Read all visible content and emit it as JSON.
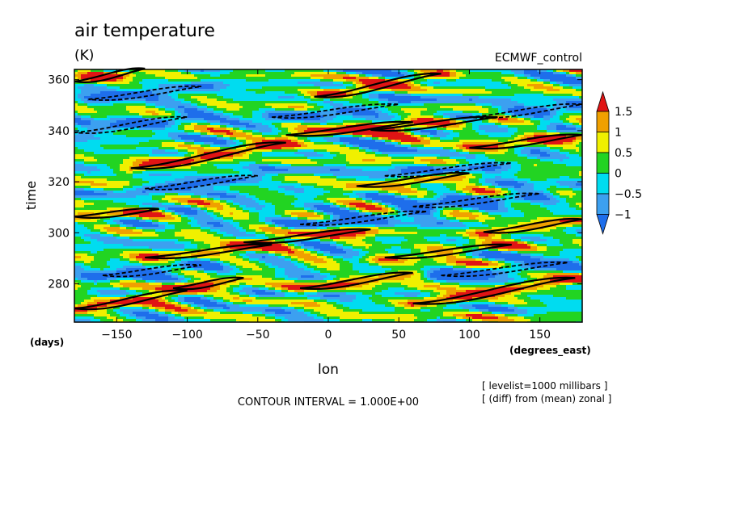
{
  "chart_data": {
    "type": "heatmap",
    "title": "air temperature",
    "units": "(K)",
    "dataset": "ECMWF_control",
    "xlabel": "lon",
    "ylabel": "time",
    "x_units_label": "(degrees_east)",
    "y_units_label": "(days)",
    "xlim": [
      -180,
      180
    ],
    "ylim": [
      265,
      364
    ],
    "xticks": [
      -150,
      -100,
      -50,
      0,
      50,
      100,
      150
    ],
    "xtick_labels": [
      "−150",
      "−100",
      "−50",
      "0",
      "50",
      "100",
      "150"
    ],
    "yticks": [
      280,
      300,
      320,
      340,
      360
    ],
    "ytick_labels": [
      "280",
      "300",
      "320",
      "340",
      "360"
    ],
    "colorbar": {
      "levels": [
        -1,
        -0.5,
        0,
        0.5,
        1,
        1.5
      ],
      "labels": [
        "−1",
        "−0.5",
        "0",
        "0.5",
        "1",
        "1.5"
      ],
      "colors": [
        "#1e6eeb",
        "#3ca0f0",
        "#00dcf0",
        "#22d422",
        "#f0f000",
        "#f0a000",
        "#e01414"
      ],
      "extend": "both"
    },
    "contour_interval_text": "CONTOUR INTERVAL = 1.000E+00",
    "annotations": [
      "[ levelist=1000 millibars ]",
      "[ (diff) from (mean) zonal ]"
    ],
    "positive_contour_style": "solid",
    "negative_contour_style": "dashed",
    "features": [
      {
        "sign": 1,
        "lon_start": -180,
        "lon_end": -100,
        "day_start": 270,
        "day_end": 277,
        "strength": 1.7
      },
      {
        "sign": 1,
        "lon_start": -110,
        "lon_end": -60,
        "day_start": 278,
        "day_end": 282,
        "strength": 1.3
      },
      {
        "sign": 1,
        "lon_start": -20,
        "lon_end": 60,
        "day_start": 278,
        "day_end": 284,
        "strength": 1.4
      },
      {
        "sign": 1,
        "lon_start": 60,
        "lon_end": 175,
        "day_start": 272,
        "day_end": 282,
        "strength": 1.8
      },
      {
        "sign": 1,
        "lon_start": -130,
        "lon_end": -40,
        "day_start": 290,
        "day_end": 295,
        "strength": 1.2
      },
      {
        "sign": 1,
        "lon_start": -60,
        "lon_end": 30,
        "day_start": 296,
        "day_end": 301,
        "strength": 1.3
      },
      {
        "sign": 1,
        "lon_start": 40,
        "lon_end": 130,
        "day_start": 290,
        "day_end": 295,
        "strength": 1.2
      },
      {
        "sign": 1,
        "lon_start": 110,
        "lon_end": 180,
        "day_start": 300,
        "day_end": 305,
        "strength": 1.4
      },
      {
        "sign": 1,
        "lon_start": -180,
        "lon_end": -120,
        "day_start": 306,
        "day_end": 309,
        "strength": 1.1
      },
      {
        "sign": 1,
        "lon_start": 20,
        "lon_end": 100,
        "day_start": 318,
        "day_end": 323,
        "strength": 1.3
      },
      {
        "sign": 1,
        "lon_start": -140,
        "lon_end": -30,
        "day_start": 325,
        "day_end": 335,
        "strength": 1.9
      },
      {
        "sign": 1,
        "lon_start": -30,
        "lon_end": 60,
        "day_start": 338,
        "day_end": 343,
        "strength": 1.4
      },
      {
        "sign": 1,
        "lon_start": 30,
        "lon_end": 120,
        "day_start": 340,
        "day_end": 345,
        "strength": 1.3
      },
      {
        "sign": 1,
        "lon_start": 100,
        "lon_end": 180,
        "day_start": 333,
        "day_end": 338,
        "strength": 1.5
      },
      {
        "sign": 1,
        "lon_start": -180,
        "lon_end": -130,
        "day_start": 359,
        "day_end": 364,
        "strength": 1.3
      },
      {
        "sign": 1,
        "lon_start": -10,
        "lon_end": 80,
        "day_start": 353,
        "day_end": 362,
        "strength": 1.5
      },
      {
        "sign": -1,
        "lon_start": -160,
        "lon_end": -90,
        "day_start": 283,
        "day_end": 287,
        "strength": 1.4
      },
      {
        "sign": -1,
        "lon_start": 80,
        "lon_end": 170,
        "day_start": 283,
        "day_end": 288,
        "strength": 1.3
      },
      {
        "sign": -1,
        "lon_start": -20,
        "lon_end": 70,
        "day_start": 303,
        "day_end": 308,
        "strength": 1.2
      },
      {
        "sign": -1,
        "lon_start": 60,
        "lon_end": 150,
        "day_start": 310,
        "day_end": 315,
        "strength": 1.3
      },
      {
        "sign": -1,
        "lon_start": -130,
        "lon_end": -50,
        "day_start": 317,
        "day_end": 322,
        "strength": 1.4
      },
      {
        "sign": -1,
        "lon_start": 40,
        "lon_end": 130,
        "day_start": 322,
        "day_end": 327,
        "strength": 1.2
      },
      {
        "sign": -1,
        "lon_start": -180,
        "lon_end": -100,
        "day_start": 339,
        "day_end": 345,
        "strength": 1.3
      },
      {
        "sign": -1,
        "lon_start": -40,
        "lon_end": 50,
        "day_start": 345,
        "day_end": 350,
        "strength": 1.2
      },
      {
        "sign": -1,
        "lon_start": 100,
        "lon_end": 180,
        "day_start": 345,
        "day_end": 350,
        "strength": 1.3
      },
      {
        "sign": -1,
        "lon_start": -170,
        "lon_end": -90,
        "day_start": 352,
        "day_end": 357,
        "strength": 1.2
      }
    ]
  }
}
